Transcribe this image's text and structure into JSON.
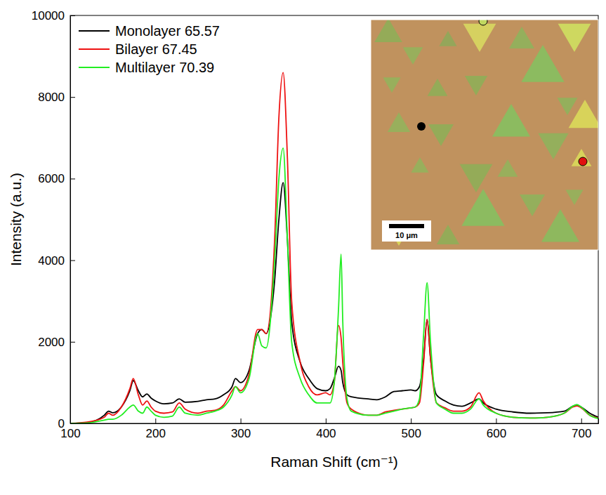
{
  "chart_data": {
    "type": "line",
    "x_label": "Raman Shift (cm⁻¹)",
    "y_label": "Intensity (a.u.)",
    "x": [
      100,
      120,
      140,
      145,
      150,
      160,
      170,
      174,
      180,
      185,
      190,
      195,
      200,
      210,
      220,
      228,
      235,
      250,
      260,
      270,
      280,
      290,
      294,
      300,
      310,
      320,
      325,
      330,
      340,
      345,
      350,
      355,
      360,
      370,
      380,
      390,
      400,
      405,
      410,
      415,
      418,
      420,
      425,
      430,
      450,
      460,
      470,
      480,
      490,
      500,
      505,
      510,
      515,
      519,
      523,
      530,
      540,
      550,
      560,
      570,
      580,
      585,
      600,
      620,
      640,
      660,
      680,
      690,
      695,
      700,
      710,
      720
    ],
    "series": [
      {
        "name": "Monolayer 65.57",
        "color": "#000000",
        "values": [
          0,
          20,
          200,
          300,
          260,
          400,
          800,
          1050,
          800,
          650,
          720,
          620,
          550,
          480,
          500,
          600,
          520,
          540,
          580,
          600,
          700,
          900,
          1100,
          1000,
          1300,
          2200,
          2300,
          2200,
          3500,
          5000,
          5900,
          4500,
          2500,
          1500,
          1100,
          850,
          800,
          850,
          1100,
          1400,
          1300,
          1000,
          700,
          650,
          600,
          580,
          650,
          780,
          800,
          820,
          800,
          900,
          1600,
          2550,
          1600,
          700,
          550,
          450,
          420,
          500,
          600,
          500,
          350,
          280,
          250,
          260,
          300,
          420,
          450,
          400,
          250,
          150
        ]
      },
      {
        "name": "Bilayer 67.45",
        "color": "#ee1111",
        "values": [
          0,
          30,
          150,
          250,
          200,
          400,
          850,
          1100,
          700,
          450,
          550,
          400,
          300,
          250,
          280,
          500,
          350,
          250,
          300,
          320,
          450,
          800,
          900,
          800,
          1200,
          2300,
          2300,
          2200,
          4500,
          7500,
          8600,
          6500,
          3000,
          1500,
          900,
          700,
          750,
          700,
          1000,
          2400,
          2100,
          1500,
          500,
          350,
          200,
          200,
          280,
          320,
          350,
          380,
          400,
          500,
          1500,
          2550,
          1600,
          500,
          380,
          300,
          300,
          400,
          750,
          550,
          250,
          150,
          130,
          150,
          250,
          400,
          430,
          380,
          200,
          130
        ]
      },
      {
        "name": "Multilayer 70.39",
        "color": "#22ee22",
        "values": [
          0,
          10,
          80,
          100,
          100,
          200,
          400,
          450,
          300,
          250,
          400,
          300,
          200,
          150,
          180,
          400,
          250,
          200,
          250,
          300,
          400,
          700,
          900,
          750,
          1100,
          2200,
          1900,
          1850,
          4000,
          6000,
          6750,
          4500,
          2000,
          1100,
          700,
          500,
          500,
          500,
          1000,
          2800,
          4150,
          2500,
          600,
          300,
          200,
          200,
          250,
          300,
          350,
          380,
          400,
          600,
          2200,
          3450,
          2000,
          500,
          350,
          250,
          250,
          350,
          600,
          450,
          250,
          150,
          130,
          150,
          250,
          420,
          460,
          400,
          200,
          120
        ]
      }
    ],
    "xlim": [
      100,
      720
    ],
    "xticks": [
      100,
      200,
      300,
      400,
      500,
      600,
      700
    ],
    "ylim": [
      0,
      10000
    ],
    "yticks": [
      0,
      2000,
      4000,
      6000,
      8000,
      10000
    ],
    "legend": "top-left",
    "grid": false,
    "annotations": [
      "10 μm"
    ]
  }
}
